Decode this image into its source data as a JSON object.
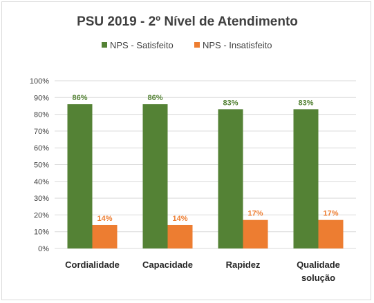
{
  "chart_data": {
    "type": "bar",
    "title": "PSU 2019 - 2º Nível de Atendimento",
    "categories": [
      [
        "Cordialidade"
      ],
      [
        "Capacidade"
      ],
      [
        "Rapidez"
      ],
      [
        "Qualidade",
        "solução"
      ]
    ],
    "series": [
      {
        "name": "NPS - Satisfeito",
        "color": "#548235",
        "values": [
          86,
          86,
          83,
          83
        ],
        "labels": [
          "86%",
          "86%",
          "83%",
          "83%"
        ]
      },
      {
        "name": "NPS - Insatisfeito",
        "color": "#ed7d31",
        "values": [
          14,
          14,
          17,
          17
        ],
        "labels": [
          "14%",
          "14%",
          "17%",
          "17%"
        ]
      }
    ],
    "ylim": [
      0,
      100
    ],
    "yticks": [
      "0%",
      "10%",
      "20%",
      "30%",
      "40%",
      "50%",
      "60%",
      "70%",
      "80%",
      "90%",
      "100%"
    ],
    "grid": true,
    "legend_position": "top"
  }
}
